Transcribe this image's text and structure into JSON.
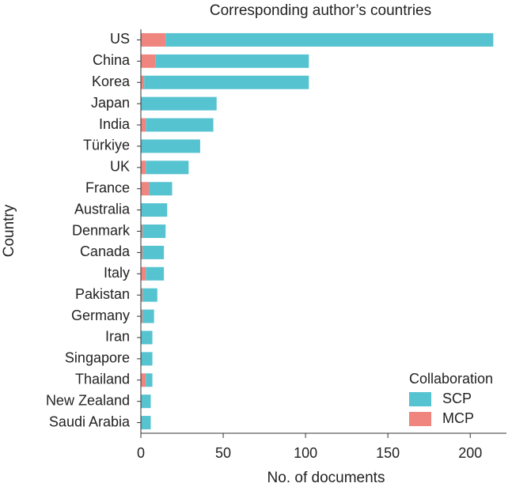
{
  "chart_data": {
    "type": "stacked-barh",
    "title": "Corresponding author’s countries",
    "x_label": "No. of documents",
    "y_label": "Country",
    "legend_title": "Collaboration",
    "categories": [
      "US",
      "China",
      "Korea",
      "Japan",
      "India",
      "Türkiye",
      "UK",
      "France",
      "Australia",
      "Denmark",
      "Canada",
      "Italy",
      "Pakistan",
      "Germany",
      "Iran",
      "Singapore",
      "Thailand",
      "New Zealand",
      "Saudi Arabia"
    ],
    "series": [
      {
        "name": "SCP",
        "color": "#56c3d0",
        "values": [
          199,
          93,
          100,
          46,
          41,
          36,
          26,
          14,
          16,
          14,
          13,
          11,
          9,
          7,
          7,
          7,
          4,
          6,
          6
        ]
      },
      {
        "name": "MCP",
        "color": "#f08580",
        "values": [
          15,
          9,
          2,
          0,
          3,
          0,
          3,
          5,
          0,
          1,
          1,
          3,
          1,
          1,
          0,
          0,
          3,
          0,
          0
        ]
      }
    ],
    "xlim": [
      0,
      222
    ],
    "xticks": [
      0,
      50,
      100,
      150,
      200
    ],
    "legend_position": "lower right"
  }
}
